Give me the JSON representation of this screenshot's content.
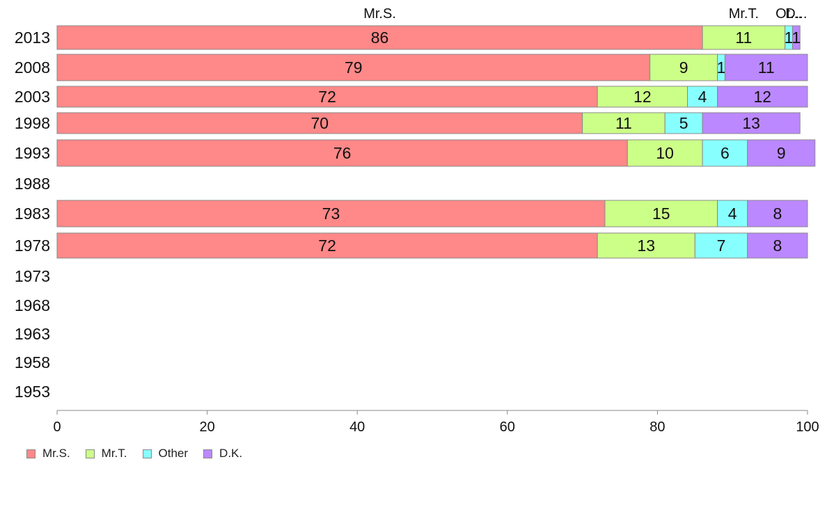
{
  "chart_data": {
    "type": "bar",
    "orientation": "horizontal",
    "stacked": true,
    "categories": [
      "2013",
      "2008",
      "2003",
      "1998",
      "1993",
      "1988",
      "1983",
      "1978",
      "1973",
      "1968",
      "1963",
      "1958",
      "1953"
    ],
    "series": [
      {
        "name": "Mr.S.",
        "color": "#ff8888",
        "values": [
          86,
          79,
          72,
          70,
          76,
          null,
          73,
          72,
          null,
          null,
          null,
          null,
          null
        ]
      },
      {
        "name": "Mr.T.",
        "color": "#ccff88",
        "values": [
          11,
          9,
          12,
          11,
          10,
          null,
          15,
          13,
          null,
          null,
          null,
          null,
          null
        ]
      },
      {
        "name": "Other",
        "color": "#88ffff",
        "values": [
          1,
          1,
          4,
          5,
          6,
          null,
          4,
          7,
          null,
          null,
          null,
          null,
          null
        ]
      },
      {
        "name": "D.K.",
        "color": "#bb88ff",
        "values": [
          1,
          11,
          12,
          13,
          9,
          null,
          8,
          8,
          null,
          null,
          null,
          null,
          null
        ]
      }
    ],
    "top_labels": [
      "Mr.S.",
      "Mr.T.",
      "Ot...",
      "D..."
    ],
    "xlim": [
      0,
      100
    ],
    "xticks": [
      "0",
      "20",
      "40",
      "60",
      "80",
      "100"
    ],
    "legend_position": "bottom-left",
    "grid": false
  }
}
